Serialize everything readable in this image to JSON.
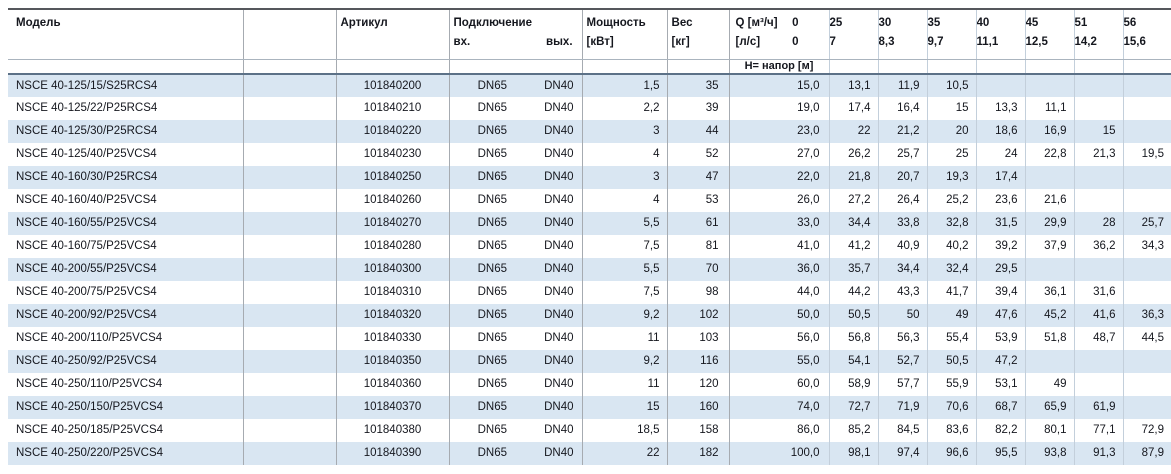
{
  "table": {
    "headers": {
      "model": "Модель",
      "artikul": "Артикул",
      "connection": "Подключение",
      "conn_in": "вх.",
      "conn_out": "вых.",
      "power_l1": "Мощность",
      "power_l2": "[кВт]",
      "weight_l1": "Вес",
      "weight_l2": "[кг]",
      "q_row1_label": "Q [м³/ч]",
      "q_row1_zero": "0",
      "q_row2_label": "[л/с]",
      "q_row2_zero": "0",
      "flow_m3h": [
        "25",
        "30",
        "35",
        "40",
        "45",
        "51",
        "56"
      ],
      "flow_ls": [
        "7",
        "8,3",
        "9,7",
        "11,1",
        "12,5",
        "14,2",
        "15,6"
      ],
      "head_label": "Н= напор [м]"
    },
    "rows": [
      {
        "model": "NSCE 40-125/15/S25RCS4",
        "artikul": "101840200",
        "dn_in": "DN65",
        "dn_out": "DN40",
        "power": "1,5",
        "weight": "35",
        "heads": [
          "15,0",
          "13,1",
          "11,9",
          "10,5",
          "",
          "",
          "",
          ""
        ]
      },
      {
        "model": "NSCE 40-125/22/P25RCS4",
        "artikul": "101840210",
        "dn_in": "DN65",
        "dn_out": "DN40",
        "power": "2,2",
        "weight": "39",
        "heads": [
          "19,0",
          "17,4",
          "16,4",
          "15",
          "13,3",
          "11,1",
          "",
          ""
        ]
      },
      {
        "model": "NSCE 40-125/30/P25RCS4",
        "artikul": "101840220",
        "dn_in": "DN65",
        "dn_out": "DN40",
        "power": "3",
        "weight": "44",
        "heads": [
          "23,0",
          "22",
          "21,2",
          "20",
          "18,6",
          "16,9",
          "15",
          ""
        ]
      },
      {
        "model": "NSCE 40-125/40/P25VCS4",
        "artikul": "101840230",
        "dn_in": "DN65",
        "dn_out": "DN40",
        "power": "4",
        "weight": "52",
        "heads": [
          "27,0",
          "26,2",
          "25,7",
          "25",
          "24",
          "22,8",
          "21,3",
          "19,5"
        ]
      },
      {
        "model": "NSCE 40-160/30/P25RCS4",
        "artikul": "101840250",
        "dn_in": "DN65",
        "dn_out": "DN40",
        "power": "3",
        "weight": "47",
        "heads": [
          "22,0",
          "21,8",
          "20,7",
          "19,3",
          "17,4",
          "",
          "",
          ""
        ]
      },
      {
        "model": "NSCE 40-160/40/P25VCS4",
        "artikul": "101840260",
        "dn_in": "DN65",
        "dn_out": "DN40",
        "power": "4",
        "weight": "53",
        "heads": [
          "26,0",
          "27,2",
          "26,4",
          "25,2",
          "23,6",
          "21,6",
          "",
          ""
        ]
      },
      {
        "model": "NSCE 40-160/55/P25VCS4",
        "artikul": "101840270",
        "dn_in": "DN65",
        "dn_out": "DN40",
        "power": "5,5",
        "weight": "61",
        "heads": [
          "33,0",
          "34,4",
          "33,8",
          "32,8",
          "31,5",
          "29,9",
          "28",
          "25,7"
        ]
      },
      {
        "model": "NSCE 40-160/75/P25VCS4",
        "artikul": "101840280",
        "dn_in": "DN65",
        "dn_out": "DN40",
        "power": "7,5",
        "weight": "81",
        "heads": [
          "41,0",
          "41,2",
          "40,9",
          "40,2",
          "39,2",
          "37,9",
          "36,2",
          "34,3"
        ]
      },
      {
        "model": "NSCE 40-200/55/P25VCS4",
        "artikul": "101840300",
        "dn_in": "DN65",
        "dn_out": "DN40",
        "power": "5,5",
        "weight": "70",
        "heads": [
          "36,0",
          "35,7",
          "34,4",
          "32,4",
          "29,5",
          "",
          "",
          ""
        ]
      },
      {
        "model": "NSCE 40-200/75/P25VCS4",
        "artikul": "101840310",
        "dn_in": "DN65",
        "dn_out": "DN40",
        "power": "7,5",
        "weight": "98",
        "heads": [
          "44,0",
          "44,2",
          "43,3",
          "41,7",
          "39,4",
          "36,1",
          "31,6",
          ""
        ]
      },
      {
        "model": "NSCE 40-200/92/P25VCS4",
        "artikul": "101840320",
        "dn_in": "DN65",
        "dn_out": "DN40",
        "power": "9,2",
        "weight": "102",
        "heads": [
          "50,0",
          "50,5",
          "50",
          "49",
          "47,6",
          "45,2",
          "41,6",
          "36,3"
        ]
      },
      {
        "model": "NSCE 40-200/110/P25VCS4",
        "artikul": "101840330",
        "dn_in": "DN65",
        "dn_out": "DN40",
        "power": "11",
        "weight": "103",
        "heads": [
          "56,0",
          "56,8",
          "56,3",
          "55,4",
          "53,9",
          "51,8",
          "48,7",
          "44,5"
        ]
      },
      {
        "model": "NSCE 40-250/92/P25VCS4",
        "artikul": "101840350",
        "dn_in": "DN65",
        "dn_out": "DN40",
        "power": "9,2",
        "weight": "116",
        "heads": [
          "55,0",
          "54,1",
          "52,7",
          "50,5",
          "47,2",
          "",
          "",
          ""
        ]
      },
      {
        "model": "NSCE 40-250/110/P25VCS4",
        "artikul": "101840360",
        "dn_in": "DN65",
        "dn_out": "DN40",
        "power": "11",
        "weight": "120",
        "heads": [
          "60,0",
          "58,9",
          "57,7",
          "55,9",
          "53,1",
          "49",
          "",
          ""
        ]
      },
      {
        "model": "NSCE 40-250/150/P25VCS4",
        "artikul": "101840370",
        "dn_in": "DN65",
        "dn_out": "DN40",
        "power": "15",
        "weight": "160",
        "heads": [
          "74,0",
          "72,7",
          "71,9",
          "70,6",
          "68,7",
          "65,9",
          "61,9",
          ""
        ]
      },
      {
        "model": "NSCE 40-250/185/P25VCS4",
        "artikul": "101840380",
        "dn_in": "DN65",
        "dn_out": "DN40",
        "power": "18,5",
        "weight": "158",
        "heads": [
          "86,0",
          "85,2",
          "84,5",
          "83,6",
          "82,2",
          "80,1",
          "77,1",
          "72,9"
        ]
      },
      {
        "model": "NSCE 40-250/220/P25VCS4",
        "artikul": "101840390",
        "dn_in": "DN65",
        "dn_out": "DN40",
        "power": "22",
        "weight": "182",
        "heads": [
          "100,0",
          "98,1",
          "97,4",
          "96,6",
          "95,5",
          "93,8",
          "91,3",
          "87,9"
        ]
      }
    ]
  }
}
